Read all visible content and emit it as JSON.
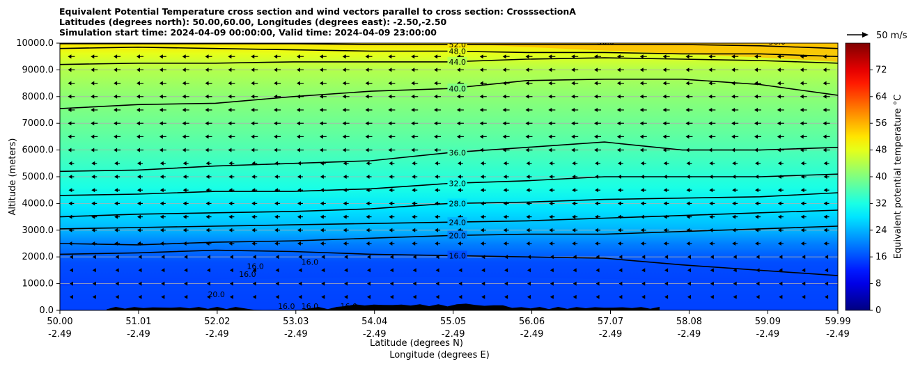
{
  "titles": {
    "line1": "Equivalent Potential Temperature cross section and wind vectors parallel to cross section: CrosssectionA",
    "line2": "Latitudes (degrees north): 50.00,60.00, Longitudes (degrees east): -2.50,-2.50",
    "line3": "Simulation start time: 2024-04-09 00:00:00, Valid time: 2024-04-09 23:00:00"
  },
  "wind_key": {
    "label": "50 m/s"
  },
  "chart_data": {
    "type": "contour",
    "title": "Equivalent Potential Temperature cross section and wind vectors parallel to cross section: CrosssectionA",
    "ylabel": "Altitude (meters)",
    "xlabel_1": "Latitude (degrees N)",
    "xlabel_2": "Longitude (degrees E)",
    "ylim": [
      0,
      10000
    ],
    "xlim": [
      50.0,
      59.99
    ],
    "grid": "horizontal",
    "y_ticks": [
      "0.0",
      "1000.0",
      "2000.0",
      "3000.0",
      "4000.0",
      "5000.0",
      "6000.0",
      "7000.0",
      "8000.0",
      "9000.0",
      "10000.0"
    ],
    "x_ticks": [
      {
        "lat": "50.00",
        "lon": "-2.49"
      },
      {
        "lat": "51.01",
        "lon": "-2.49"
      },
      {
        "lat": "52.02",
        "lon": "-2.49"
      },
      {
        "lat": "53.03",
        "lon": "-2.49"
      },
      {
        "lat": "54.04",
        "lon": "-2.49"
      },
      {
        "lat": "55.05",
        "lon": "-2.49"
      },
      {
        "lat": "56.06",
        "lon": "-2.49"
      },
      {
        "lat": "57.07",
        "lon": "-2.49"
      },
      {
        "lat": "58.08",
        "lon": "-2.49"
      },
      {
        "lat": "59.09",
        "lon": "-2.49"
      },
      {
        "lat": "59.99",
        "lon": "-2.49"
      }
    ],
    "colorbar": {
      "label": "Equivalent potential temperature °C",
      "range": [
        0,
        80
      ],
      "ticks": [
        "0",
        "8",
        "16",
        "24",
        "32",
        "40",
        "48",
        "56",
        "64",
        "72"
      ]
    },
    "contours": [
      {
        "level": 16,
        "label": "16.0",
        "y": [
          2100,
          2150,
          2250,
          2200,
          2100,
          2050,
          2000,
          1950,
          1700,
          1500,
          1300
        ]
      },
      {
        "level": 20,
        "label": "20.0",
        "y": [
          2500,
          2450,
          2550,
          2600,
          2700,
          2800,
          2850,
          2850,
          2950,
          3050,
          3150
        ]
      },
      {
        "level": 24,
        "label": "24.0",
        "y": [
          3050,
          3100,
          3150,
          3200,
          3250,
          3300,
          3350,
          3450,
          3550,
          3650,
          3750
        ]
      },
      {
        "level": 28,
        "label": "28.0",
        "y": [
          3500,
          3600,
          3650,
          3700,
          3800,
          4000,
          4050,
          4150,
          4200,
          4250,
          4400
        ]
      },
      {
        "level": 32,
        "label": "32.0",
        "y": [
          4300,
          4350,
          4450,
          4450,
          4550,
          4750,
          4850,
          5000,
          5000,
          5000,
          5100
        ]
      },
      {
        "level": 36,
        "label": "36.0",
        "y": [
          5200,
          5250,
          5400,
          5500,
          5600,
          5900,
          6100,
          6300,
          6000,
          6000,
          6100
        ]
      },
      {
        "level": 40,
        "label": "40.0",
        "y": [
          7550,
          7700,
          7750,
          8000,
          8200,
          8300,
          8600,
          8650,
          8650,
          8450,
          8050
        ]
      },
      {
        "level": 44,
        "label": "44.0",
        "y": [
          9200,
          9250,
          9250,
          9300,
          9300,
          9300,
          9400,
          9450,
          9400,
          9350,
          9250
        ]
      },
      {
        "level": 48,
        "label": "48.0",
        "y": [
          9800,
          9850,
          9800,
          9750,
          9700,
          9700,
          9650,
          9650,
          9600,
          9600,
          9500
        ]
      },
      {
        "level": 52,
        "label": "52.0",
        "y": [
          9980,
          9980,
          9980,
          9980,
          9950,
          9950,
          9950,
          9950,
          9950,
          9900,
          9800
        ]
      }
    ],
    "contour_labels_extra": [
      "16.0",
      "16.0",
      "16.0",
      "20.0",
      "16.0",
      "16.0",
      "16.0",
      "56.0",
      "56.0"
    ],
    "wind": {
      "direction": "left (southward along section)",
      "rows_altitude_m": [
        500,
        1000,
        1500,
        2000,
        2500,
        3000,
        3500,
        4000,
        4500,
        5000,
        5500,
        6000,
        6500,
        7000,
        7500,
        8000,
        8500,
        9000,
        9500
      ]
    },
    "terrain": "black filled orography near 0 m between latitudes 50.6 and 57.7"
  },
  "colors": {
    "colormap": [
      "#00007f",
      "#0000ff",
      "#007fff",
      "#00ffff",
      "#7fff7f",
      "#ffff00",
      "#ff7f00",
      "#ff0000",
      "#7f0000"
    ],
    "contour_line": "#000000",
    "terrain": "#000000"
  }
}
